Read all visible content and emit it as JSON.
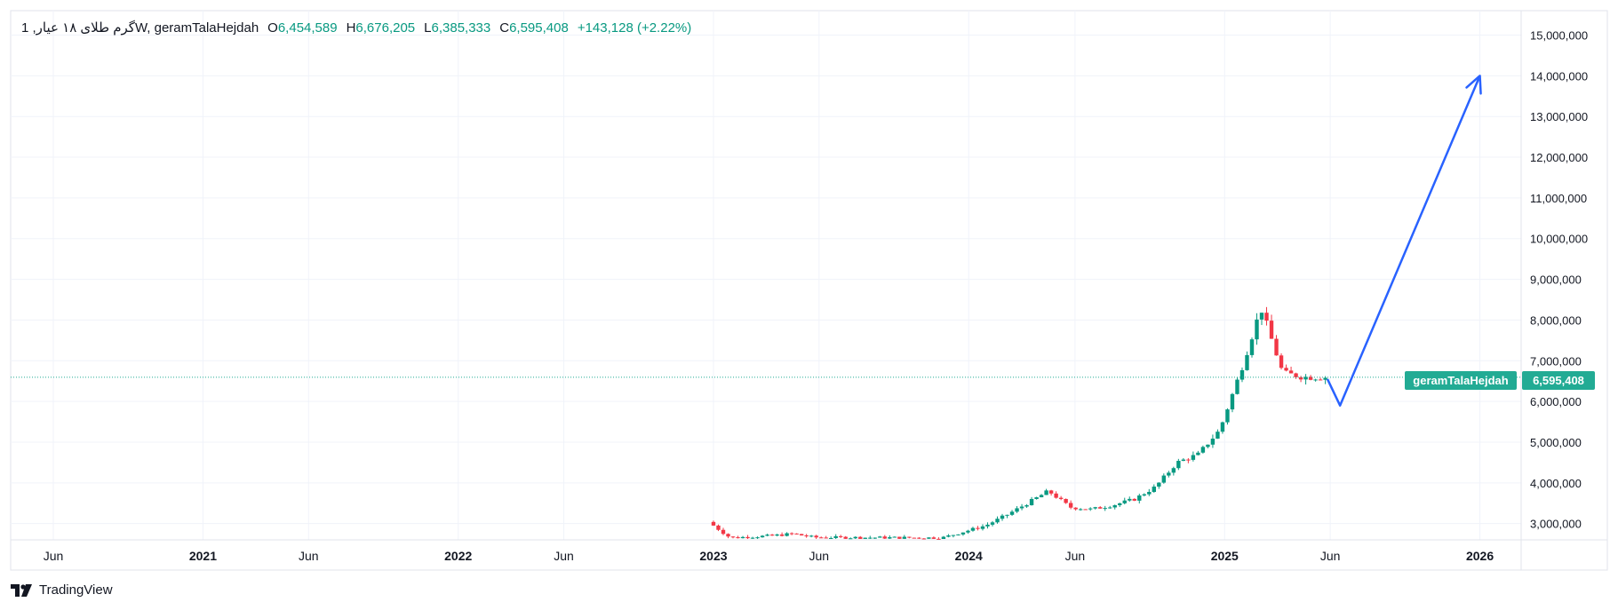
{
  "legend": {
    "symbol": "گرم طلای ۱۸ عیار, 1W, geramTalaHejdah",
    "o_label": "O",
    "o_value": "6,454,589",
    "h_label": "H",
    "h_value": "6,676,205",
    "l_label": "L",
    "l_value": "6,385,333",
    "c_label": "C",
    "c_value": "6,595,408",
    "change": "+143,128 (+2.22%)"
  },
  "brand": {
    "name": "TradingView"
  },
  "colors": {
    "up": "#089981",
    "down": "#f23645",
    "arrow": "#2962ff",
    "grid": "#f0f3fa",
    "axis_text": "#131722"
  },
  "chart_data": {
    "type": "candlestick",
    "title": "",
    "symbol_name": "geramTalaHejdah",
    "last_price": 6595408,
    "last_price_label": "6,595,408",
    "ylim": [
      2600000,
      15600000
    ],
    "yticks": [
      3000000,
      4000000,
      5000000,
      6000000,
      7000000,
      8000000,
      9000000,
      10000000,
      11000000,
      12000000,
      13000000,
      14000000,
      15000000
    ],
    "ytick_labels": [
      "3,000,000",
      "4,000,000",
      "5,000,000",
      "6,000,000",
      "7,000,000",
      "8,000,000",
      "9,000,000",
      "10,000,000",
      "11,000,000",
      "12,000,000",
      "13,000,000",
      "14,000,000",
      "15,000,000"
    ],
    "xlim": [
      "2020-04-01",
      "2026-03-01"
    ],
    "xticks": [
      {
        "date": "2020-06-01",
        "label": "Jun",
        "bold": false
      },
      {
        "date": "2021-01-01",
        "label": "2021",
        "bold": true
      },
      {
        "date": "2021-06-01",
        "label": "Jun",
        "bold": false
      },
      {
        "date": "2022-01-01",
        "label": "2022",
        "bold": true
      },
      {
        "date": "2022-06-01",
        "label": "Jun",
        "bold": false
      },
      {
        "date": "2023-01-01",
        "label": "2023",
        "bold": true
      },
      {
        "date": "2023-06-01",
        "label": "Jun",
        "bold": false
      },
      {
        "date": "2024-01-01",
        "label": "2024",
        "bold": true
      },
      {
        "date": "2024-06-01",
        "label": "Jun",
        "bold": false
      },
      {
        "date": "2025-01-01",
        "label": "2025",
        "bold": true
      },
      {
        "date": "2025-06-01",
        "label": "Jun",
        "bold": false
      },
      {
        "date": "2026-01-01",
        "label": "2026",
        "bold": true
      }
    ],
    "grid": true,
    "price_path": [
      [
        "2023-01-01",
        3040000
      ],
      [
        "2023-02-01",
        2650000
      ],
      [
        "2023-04-01",
        2700000
      ],
      [
        "2023-05-01",
        2750000
      ],
      [
        "2023-06-01",
        2660000
      ],
      [
        "2023-12-01",
        2650000
      ],
      [
        "2024-01-01",
        2800000
      ],
      [
        "2024-02-01",
        2950000
      ],
      [
        "2024-03-01",
        3200000
      ],
      [
        "2024-04-01",
        3500000
      ],
      [
        "2024-05-01",
        3800000
      ],
      [
        "2024-06-01",
        3400000
      ],
      [
        "2024-07-01",
        3350000
      ],
      [
        "2024-08-01",
        3450000
      ],
      [
        "2024-09-01",
        3600000
      ],
      [
        "2024-10-01",
        3900000
      ],
      [
        "2024-11-01",
        4500000
      ],
      [
        "2024-12-01",
        4700000
      ],
      [
        "2025-01-01",
        5300000
      ],
      [
        "2025-02-01",
        6800000
      ],
      [
        "2025-03-01",
        8300000
      ],
      [
        "2025-04-01",
        6700000
      ],
      [
        "2025-05-01",
        6600000
      ],
      [
        "2025-05-28",
        6595408
      ]
    ],
    "projection": [
      [
        "2025-05-28",
        6550000
      ],
      [
        "2025-06-15",
        5900000
      ],
      [
        "2026-01-01",
        14000000
      ]
    ]
  }
}
